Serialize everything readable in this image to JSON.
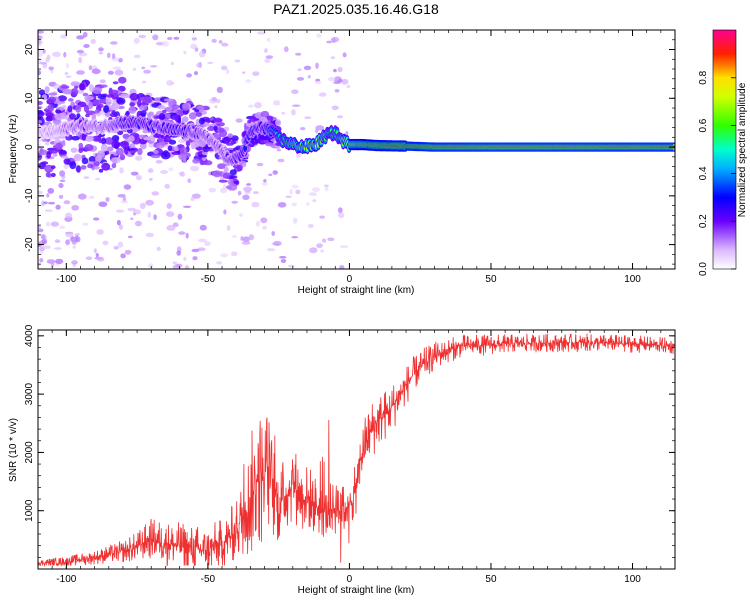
{
  "title": "PAZ1.2025.035.16.46.G18",
  "chart_data": [
    {
      "type": "heatmap",
      "xlabel": "Height of straight line (km)",
      "ylabel": "Frequency (Hz)",
      "xlim": [
        -110,
        115
      ],
      "ylim": [
        -25,
        24
      ],
      "xticks": [
        -100,
        -50,
        0,
        50,
        100
      ],
      "yticks": [
        -20,
        -10,
        0,
        10,
        20
      ],
      "ytick_labels": [
        "-20",
        "-10",
        "0",
        "10",
        "20"
      ],
      "colorbar": {
        "label": "Normalized spectral amplitude",
        "range": [
          0,
          1
        ],
        "ticks": [
          0.0,
          0.2,
          0.4,
          0.6,
          0.8
        ],
        "tick_labels": [
          "0.0",
          "0.2",
          "0.4",
          "0.6",
          "0.8"
        ]
      },
      "ridge": {
        "x": [
          -105,
          -95,
          -88,
          -82,
          -75,
          -68,
          -62,
          -55,
          -50,
          -45,
          -42,
          -38,
          -35,
          -32,
          -30,
          -27,
          -24,
          -20,
          -16,
          -12,
          -8,
          -5,
          -3,
          0,
          5,
          10,
          20,
          30,
          50,
          80,
          115
        ],
        "y": [
          3,
          4.5,
          4,
          5,
          5,
          4,
          3.5,
          3,
          2,
          -1,
          -3,
          -1.5,
          3,
          4,
          4,
          3,
          1.5,
          0.5,
          0,
          0.5,
          2.5,
          3,
          1.5,
          0.5,
          0.5,
          0.3,
          0.2,
          0,
          0,
          0,
          0
        ],
        "amp": [
          0.12,
          0.2,
          0.18,
          0.25,
          0.3,
          0.28,
          0.3,
          0.25,
          0.22,
          0.2,
          0.25,
          0.3,
          0.35,
          0.3,
          0.32,
          0.45,
          0.55,
          0.65,
          0.7,
          0.72,
          0.6,
          0.55,
          0.6,
          0.8,
          0.85,
          0.88,
          0.9,
          0.95,
          0.97,
          0.97,
          0.96
        ]
      }
    },
    {
      "type": "line",
      "xlabel": "Height of straight line (km)",
      "ylabel": "SNR (10 * v/v)",
      "xlim": [
        -110,
        115
      ],
      "ylim": [
        0,
        4100
      ],
      "xticks": [
        -100,
        -50,
        0,
        50,
        100
      ],
      "yticks": [
        1000,
        2000,
        3000,
        4000
      ],
      "color": "#ee3030",
      "series": [
        {
          "x": [
            -110,
            -100,
            -90,
            -80,
            -75,
            -70,
            -65,
            -60,
            -55,
            -50,
            -45,
            -40,
            -37,
            -35,
            -33,
            -31,
            -29,
            -27,
            -25,
            -22,
            -20,
            -17,
            -14,
            -12,
            -10,
            -8,
            -6,
            -4,
            -2,
            -1,
            0,
            2,
            4,
            6,
            8,
            10,
            14,
            18,
            22,
            26,
            30,
            35,
            40,
            50,
            60,
            70,
            80,
            90,
            100,
            110,
            115
          ],
          "y": [
            100,
            130,
            200,
            300,
            380,
            520,
            450,
            400,
            330,
            330,
            430,
            650,
            1000,
            1200,
            1500,
            1600,
            1700,
            1400,
            1100,
            1300,
            1500,
            1250,
            1200,
            1100,
            1000,
            950,
            1050,
            1000,
            1000,
            1050,
            1100,
            1300,
            1900,
            2200,
            2400,
            2550,
            2700,
            3000,
            3300,
            3500,
            3650,
            3750,
            3830,
            3850,
            3870,
            3880,
            3880,
            3880,
            3860,
            3840,
            3820
          ],
          "noise": [
            40,
            50,
            70,
            110,
            150,
            200,
            220,
            230,
            250,
            240,
            250,
            300,
            450,
            600,
            700,
            700,
            650,
            500,
            400,
            380,
            380,
            360,
            330,
            300,
            280,
            260,
            260,
            250,
            250,
            250,
            250,
            260,
            280,
            300,
            300,
            280,
            250,
            220,
            180,
            160,
            140,
            120,
            110,
            100,
            90,
            90,
            90,
            85,
            85,
            80,
            80
          ]
        }
      ]
    }
  ]
}
